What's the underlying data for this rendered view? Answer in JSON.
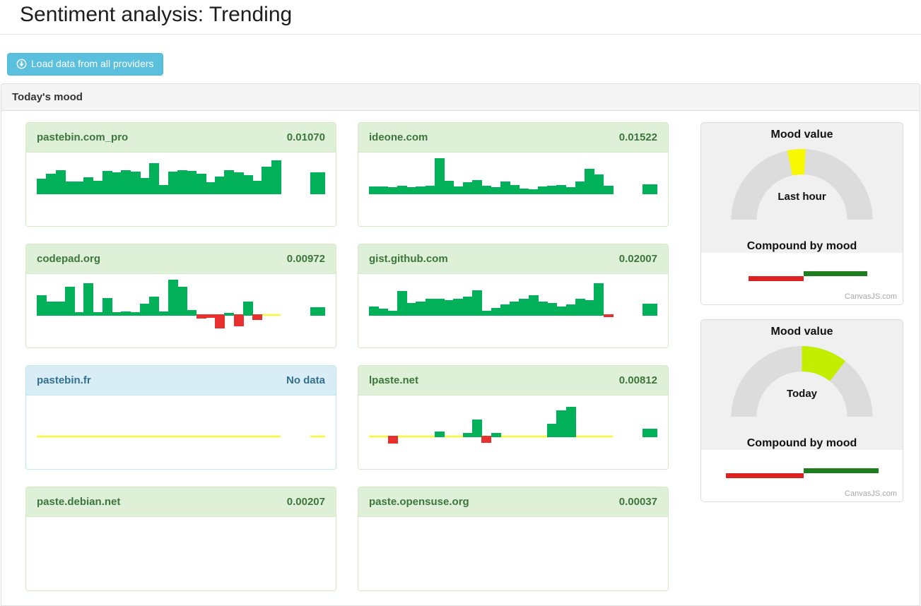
{
  "page": {
    "title": "Sentiment analysis: Trending"
  },
  "toolbar": {
    "load_button": "Load data from all providers"
  },
  "panel": {
    "heading": "Today's mood"
  },
  "colors": {
    "positive": "#00b15a",
    "negative": "#e8302e",
    "zero_line": "#ffff00",
    "gauge_track": "#dcdcdc",
    "compound_negative": "#dd2020",
    "compound_positive": "#1e7d1e",
    "button": "#5bc0de"
  },
  "chart_data": {
    "providers": [
      {
        "name": "pastebin.com_pro",
        "value": "0.01070",
        "status": "success",
        "type": "bar",
        "values": [
          0.38,
          0.52,
          0.62,
          0.3,
          0.3,
          0.42,
          0.32,
          0.6,
          0.55,
          0.62,
          0.58,
          0.4,
          0.8,
          0.22,
          0.58,
          0.62,
          0.6,
          0.52,
          0.28,
          0.45,
          0.62,
          0.55,
          0.48,
          0.32,
          0.72,
          0.88
        ],
        "latest": 0.55
      },
      {
        "name": "ideone.com",
        "value": "0.01522",
        "status": "success",
        "type": "bar",
        "values": [
          0.18,
          0.18,
          0.16,
          0.2,
          0.16,
          0.18,
          0.2,
          0.95,
          0.32,
          0.18,
          0.28,
          0.35,
          0.2,
          0.16,
          0.3,
          0.22,
          0.12,
          0.1,
          0.18,
          0.2,
          0.22,
          0.16,
          0.3,
          0.65,
          0.5,
          0.2
        ],
        "latest": 0.23
      },
      {
        "name": "codepad.org",
        "value": "0.00972",
        "status": "success",
        "type": "bar",
        "values": [
          0.52,
          0.35,
          0.35,
          0.75,
          0.05,
          0.85,
          0.05,
          0.45,
          0.05,
          0.08,
          0.05,
          0.28,
          0.48,
          0.08,
          0.95,
          0.75,
          0.12,
          -0.08,
          -0.05,
          -0.35,
          0.04,
          -0.28,
          0.35,
          -0.12,
          0,
          0
        ],
        "latest": 0.2
      },
      {
        "name": "gist.github.com",
        "value": "0.02007",
        "status": "success",
        "type": "bar",
        "values": [
          0.22,
          0.16,
          0.09,
          0.63,
          0.3,
          0.35,
          0.42,
          0.43,
          0.39,
          0.43,
          0.48,
          0.65,
          0.1,
          0.17,
          0.26,
          0.35,
          0.43,
          0.52,
          0.35,
          0.3,
          0.22,
          0.26,
          0.43,
          0.39,
          0.85,
          -0.04
        ],
        "latest": 0.28
      },
      {
        "name": "pastebin.fr",
        "value": "No data",
        "status": "nodata",
        "type": "bar",
        "values": [
          0,
          0,
          0,
          0,
          0,
          0,
          0,
          0,
          0,
          0,
          0,
          0,
          0,
          0,
          0,
          0,
          0,
          0,
          0,
          0,
          0,
          0,
          0,
          0,
          0,
          0
        ],
        "latest": 0
      },
      {
        "name": "lpaste.net",
        "value": "0.00812",
        "status": "success",
        "type": "bar",
        "values": [
          0,
          0,
          -0.18,
          0,
          0,
          0,
          0,
          0.12,
          0,
          0,
          0.07,
          0.45,
          -0.15,
          0.08,
          0,
          0,
          0,
          0,
          0,
          0.33,
          0.7,
          0.78,
          0,
          0,
          0,
          0
        ],
        "latest": 0.2
      },
      {
        "name": "paste.debian.net",
        "value": "0.00207",
        "status": "success",
        "type": "bar",
        "values": null,
        "latest": null
      },
      {
        "name": "paste.opensuse.org",
        "value": "0.00037",
        "status": "success",
        "type": "bar",
        "values": null,
        "latest": null
      }
    ],
    "gauges": [
      {
        "title": "Mood value",
        "period": "Last hour",
        "type": "gauge",
        "wedge": {
          "start_deg": 102,
          "end_deg": 87,
          "color": "#f8f800"
        },
        "compound_title": "Compound by mood",
        "compound": {
          "negative": -0.39,
          "positive": 0.45
        },
        "watermark": "CanvasJS.com"
      },
      {
        "title": "Mood value",
        "period": "Today",
        "type": "gauge",
        "wedge": {
          "start_deg": 90,
          "end_deg": 52,
          "color": "#c3ee00"
        },
        "compound_title": "Compound by mood",
        "compound": {
          "negative": -0.55,
          "positive": 0.53
        },
        "watermark": "CanvasJS.com"
      }
    ]
  }
}
